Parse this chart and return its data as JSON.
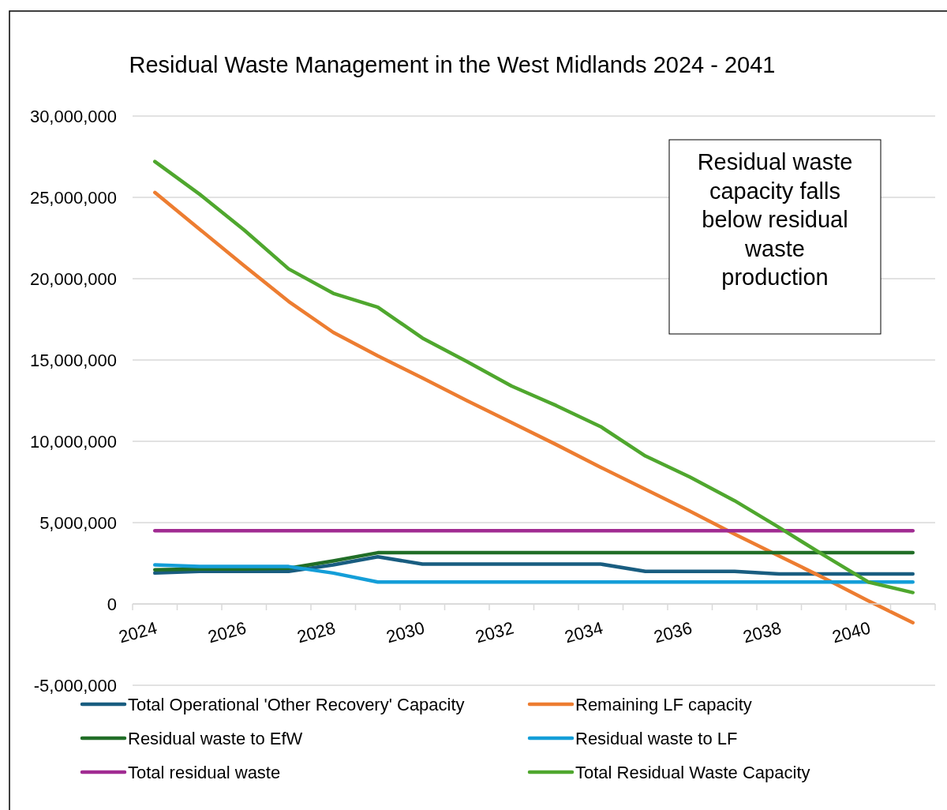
{
  "chart_data": {
    "type": "line",
    "title": "Residual Waste Management in the West Midlands 2024 - 2041",
    "categories": [
      "2024",
      null,
      "2026",
      null,
      "2028",
      null,
      "2030",
      null,
      "2032",
      null,
      "2034",
      null,
      "2036",
      null,
      "2038",
      null,
      "2040",
      null
    ],
    "series": [
      {
        "name": "Total Operational 'Other Recovery' Capacity",
        "color": "#195d80",
        "values": [
          1900000,
          2000000,
          2000000,
          2000000,
          2400000,
          2900000,
          2450000,
          2450000,
          2450000,
          2450000,
          2450000,
          2000000,
          2000000,
          2000000,
          1850000,
          1850000,
          1850000,
          1850000
        ]
      },
      {
        "name": "Remaining LF capacity",
        "color": "#ed7d31",
        "values": [
          25300000,
          23050000,
          20800000,
          18600000,
          16700000,
          15250000,
          13900000,
          12500000,
          11150000,
          9800000,
          8400000,
          7050000,
          5700000,
          4300000,
          2950000,
          1600000,
          200000,
          -1150000
        ]
      },
      {
        "name": "Residual waste to EfW",
        "color": "#216e27",
        "values": [
          2100000,
          2150000,
          2150000,
          2200000,
          2650000,
          3150000,
          3150000,
          3150000,
          3150000,
          3150000,
          3150000,
          3150000,
          3150000,
          3150000,
          3150000,
          3150000,
          3150000,
          3150000
        ]
      },
      {
        "name": "Residual waste to LF",
        "color": "#149ed8",
        "values": [
          2400000,
          2300000,
          2300000,
          2300000,
          1900000,
          1350000,
          1350000,
          1350000,
          1350000,
          1350000,
          1350000,
          1350000,
          1350000,
          1350000,
          1350000,
          1350000,
          1350000,
          1350000
        ]
      },
      {
        "name": "Total residual waste",
        "color": "#a12c92",
        "values": [
          4500000,
          4500000,
          4500000,
          4500000,
          4500000,
          4500000,
          4500000,
          4500000,
          4500000,
          4500000,
          4500000,
          4500000,
          4500000,
          4500000,
          4500000,
          4500000,
          4500000,
          4500000
        ]
      },
      {
        "name": "Total Residual Waste Capacity",
        "color": "#4fa72e",
        "values": [
          27200000,
          25200000,
          23000000,
          20600000,
          19100000,
          18250000,
          16350000,
          14900000,
          13400000,
          12200000,
          10900000,
          9100000,
          7800000,
          6350000,
          4700000,
          3000000,
          1350000,
          700000
        ]
      }
    ],
    "ylim": [
      -5000000,
      30000000
    ],
    "yticks": [
      {
        "value": -5000000,
        "label": "-5,000,000"
      },
      0,
      {
        "value": 5000000,
        "label": "5,000,000"
      },
      {
        "value": 10000000,
        "label": "10,000,000"
      },
      {
        "value": 15000000,
        "label": "15,000,000"
      },
      {
        "value": 20000000,
        "label": "20,000,000"
      },
      {
        "value": 25000000,
        "label": "25,000,000"
      },
      {
        "value": 30000000,
        "label": "30,000,000"
      }
    ],
    "grid": "y",
    "legend": "bottom",
    "line_style": "solid",
    "annotations": [
      "Residual waste capacity falls below residual waste production"
    ]
  }
}
